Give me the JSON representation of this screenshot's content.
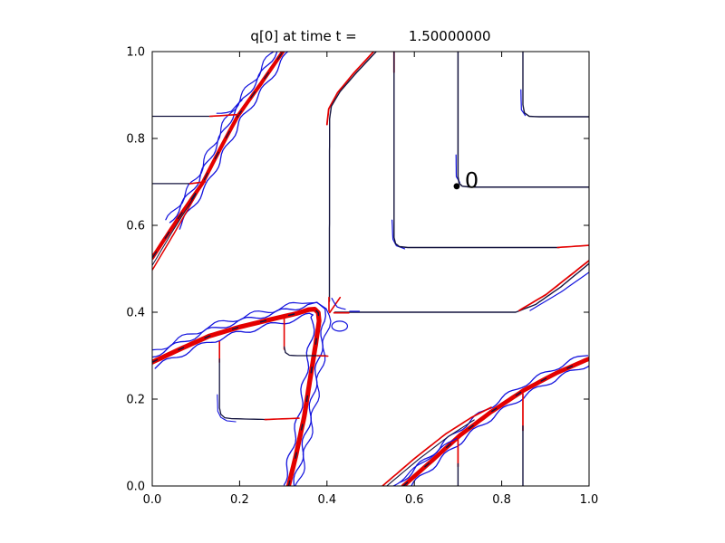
{
  "figure": {
    "title": "q[0] at time t =            1.50000000"
  },
  "chart_data": {
    "type": "contour",
    "title": "q[0] at time t =            1.50000000",
    "xlabel": "",
    "ylabel": "",
    "xlim": [
      0,
      1
    ],
    "ylim": [
      0,
      1
    ],
    "grid": false,
    "legend": null,
    "xticks": {
      "values": [
        0,
        0.2,
        0.4,
        0.6,
        0.8,
        1.0
      ],
      "labels": [
        "0.0",
        "0.2",
        "0.4",
        "0.6",
        "0.8",
        "1.0"
      ]
    },
    "yticks": {
      "values": [
        0,
        0.2,
        0.4,
        0.6,
        0.8,
        1.0
      ],
      "labels": [
        "0.0",
        "0.2",
        "0.4",
        "0.6",
        "0.8",
        "1.0"
      ]
    },
    "colors": {
      "red": "#e40000",
      "blue": "#1212dd",
      "navy": "#14143e",
      "black": "#000000"
    },
    "annotation": {
      "text": "0",
      "dot": {
        "x": 0.697,
        "y": 0.69
      },
      "label": {
        "x": 0.7155,
        "y": 0.686
      },
      "font_px": 24
    },
    "paths": {
      "U": [
        [
          0,
          0.525
        ],
        [
          0.06,
          0.617
        ],
        [
          0.115,
          0.697
        ],
        [
          0.156,
          0.777
        ],
        [
          0.196,
          0.852
        ],
        [
          0.25,
          0.928
        ],
        [
          0.306,
          1.01
        ]
      ],
      "UB": [
        [
          0.05,
          0.6
        ],
        [
          0.115,
          0.697
        ],
        [
          0.156,
          0.777
        ],
        [
          0.196,
          0.852
        ],
        [
          0.25,
          0.928
        ],
        [
          0.305,
          1.01
        ]
      ],
      "L": [
        [
          0,
          0.285
        ],
        [
          0.07,
          0.318
        ],
        [
          0.13,
          0.345
        ],
        [
          0.2,
          0.366
        ],
        [
          0.27,
          0.383
        ],
        [
          0.33,
          0.397
        ],
        [
          0.358,
          0.406
        ],
        [
          0.372,
          0.407
        ],
        [
          0.38,
          0.399
        ],
        [
          0.382,
          0.38
        ],
        [
          0.374,
          0.325
        ],
        [
          0.362,
          0.25
        ],
        [
          0.348,
          0.16
        ],
        [
          0.328,
          0.066
        ],
        [
          0.312,
          0
        ]
      ],
      "R": [
        [
          0.575,
          0
        ],
        [
          0.64,
          0.058
        ],
        [
          0.705,
          0.117
        ],
        [
          0.775,
          0.17
        ],
        [
          0.85,
          0.22
        ],
        [
          0.925,
          0.26
        ],
        [
          1.0,
          0.293
        ]
      ]
    },
    "features": [
      {
        "name": "upper-band-blue-outer",
        "ref": "UB",
        "c": "blue",
        "w": 1.2,
        "off": -9,
        "wig": 2.8,
        "ph": 4
      },
      {
        "name": "upper-band-blue-left",
        "ref": "UB",
        "c": "blue",
        "w": 1.3,
        "off": -5.5,
        "wig": 2.2
      },
      {
        "name": "upper-band-blue-right",
        "ref": "UB",
        "c": "blue",
        "w": 1.3,
        "off": 5.5,
        "wig": 2.2,
        "ph": 2
      },
      {
        "name": "upper-band-red",
        "ref": "U",
        "c": "red",
        "w": 4.2
      },
      {
        "name": "upper-band-core",
        "ref": "U",
        "c": "navy",
        "w": 1.3,
        "dash": "8 18"
      },
      {
        "name": "upper-thin-red",
        "pts": [
          [
            0,
            0.497
          ],
          [
            0.055,
            0.59
          ],
          [
            0.112,
            0.69
          ]
        ],
        "c": "red",
        "w": 1.5
      },
      {
        "name": "upper-thin-navy",
        "pts": [
          [
            0,
            0.508
          ],
          [
            0.05,
            0.592
          ],
          [
            0.1,
            0.672
          ]
        ],
        "c": "navy",
        "w": 1
      },
      {
        "name": "hline-085-navy",
        "pts": [
          [
            0,
            0.851
          ],
          [
            0.138,
            0.851
          ]
        ],
        "c": "navy",
        "w": 1.3
      },
      {
        "name": "hline-085-red",
        "pts": [
          [
            0.132,
            0.851
          ],
          [
            0.197,
            0.855
          ]
        ],
        "c": "red",
        "w": 1.6
      },
      {
        "name": "hline-085-blue",
        "pts": [
          [
            0.148,
            0.858
          ],
          [
            0.18,
            0.864
          ],
          [
            0.207,
            0.886
          ]
        ],
        "c": "blue",
        "w": 1.2,
        "wig": 1.3
      },
      {
        "name": "hline-070-navy",
        "pts": [
          [
            0,
            0.696
          ],
          [
            0.092,
            0.696
          ]
        ],
        "c": "navy",
        "w": 1.3
      },
      {
        "name": "hline-070-red",
        "pts": [
          [
            0.086,
            0.696
          ],
          [
            0.121,
            0.7
          ]
        ],
        "c": "red",
        "w": 1.6
      },
      {
        "name": "topmid-red",
        "pts": [
          [
            0.516,
            1.01
          ],
          [
            0.461,
            0.95
          ],
          [
            0.424,
            0.905
          ],
          [
            0.404,
            0.868
          ],
          [
            0.4,
            0.832
          ]
        ],
        "c": "red",
        "w": 1.8
      },
      {
        "name": "topmid-navy",
        "pts": [
          [
            0.522,
            1.01
          ],
          [
            0.468,
            0.952
          ],
          [
            0.43,
            0.908
          ],
          [
            0.41,
            0.874
          ],
          [
            0.406,
            0.845
          ],
          [
            0.4055,
            0.425
          ]
        ],
        "c": "navy",
        "w": 1.4
      },
      {
        "name": "v0553-red-tip",
        "pts": [
          [
            0.5535,
            1.01
          ],
          [
            0.5535,
            0.952
          ]
        ],
        "c": "red",
        "w": 1.8
      },
      {
        "name": "corner-0553-blue",
        "pts": [
          [
            0.549,
            0.612
          ],
          [
            0.551,
            0.568
          ],
          [
            0.559,
            0.553
          ],
          [
            0.578,
            0.546
          ]
        ],
        "c": "blue",
        "w": 1.2
      },
      {
        "name": "v0553-h055-navy",
        "pts": [
          [
            0.5535,
            1.01
          ],
          [
            0.5535,
            0.572
          ],
          [
            0.557,
            0.558
          ],
          [
            0.566,
            0.551
          ],
          [
            0.585,
            0.549
          ],
          [
            0.932,
            0.549
          ]
        ],
        "c": "navy",
        "w": 1.4
      },
      {
        "name": "h055-red",
        "pts": [
          [
            0.928,
            0.549
          ],
          [
            1.0,
            0.554
          ]
        ],
        "c": "red",
        "w": 1.6
      },
      {
        "name": "contour0-blue-corner",
        "pts": [
          [
            0.6955,
            0.762
          ],
          [
            0.696,
            0.712
          ],
          [
            0.704,
            0.699
          ]
        ],
        "c": "blue",
        "w": 1.2
      },
      {
        "name": "contour0-navy",
        "pts": [
          [
            0.7,
            1.01
          ],
          [
            0.7,
            0.712
          ],
          [
            0.7025,
            0.697
          ],
          [
            0.71,
            0.69
          ],
          [
            0.728,
            0.688
          ],
          [
            1.0,
            0.688
          ]
        ],
        "c": "navy",
        "w": 1.5
      },
      {
        "name": "v0848-blue-corner",
        "pts": [
          [
            0.844,
            0.912
          ],
          [
            0.845,
            0.866
          ],
          [
            0.854,
            0.853
          ]
        ],
        "c": "blue",
        "w": 1.2
      },
      {
        "name": "v0848-navy",
        "pts": [
          [
            0.8485,
            1.01
          ],
          [
            0.8485,
            0.878
          ],
          [
            0.852,
            0.859
          ],
          [
            0.863,
            0.851
          ],
          [
            0.886,
            0.85
          ],
          [
            1.0,
            0.85
          ]
        ],
        "c": "navy",
        "w": 1.4
      },
      {
        "name": "h040-navy",
        "pts": [
          [
            0.418,
            0.4
          ],
          [
            0.832,
            0.4
          ],
          [
            0.878,
            0.418
          ],
          [
            0.935,
            0.458
          ],
          [
            1.0,
            0.512
          ]
        ],
        "c": "navy",
        "w": 1.4
      },
      {
        "name": "h040-blue-dash",
        "pts": [
          [
            0.452,
            0.402
          ],
          [
            0.474,
            0.402
          ]
        ],
        "c": "blue",
        "w": 1.2
      },
      {
        "name": "h040-red-diag",
        "pts": [
          [
            0.84,
            0.404
          ],
          [
            0.902,
            0.441
          ],
          [
            1.0,
            0.519
          ]
        ],
        "c": "red",
        "w": 1.8
      },
      {
        "name": "h040-blue-diag",
        "pts": [
          [
            0.865,
            0.404
          ],
          [
            0.935,
            0.446
          ],
          [
            1.0,
            0.492
          ]
        ],
        "c": "blue",
        "w": 1.2
      },
      {
        "name": "junction-red-spur",
        "pts": [
          [
            0.4045,
            0.434
          ],
          [
            0.4045,
            0.402
          ]
        ],
        "c": "red",
        "w": 1.6
      },
      {
        "name": "junction-red-diag",
        "pts": [
          [
            0.406,
            0.399
          ],
          [
            0.43,
            0.434
          ]
        ],
        "c": "red",
        "w": 1.6
      },
      {
        "name": "junction-red-h",
        "pts": [
          [
            0.416,
            0.3985
          ],
          [
            0.45,
            0.3985
          ]
        ],
        "c": "red",
        "w": 1.6
      },
      {
        "name": "junction-blue-loop",
        "ellipse": true,
        "cx": 0.429,
        "cy": 0.368,
        "rx": 0.018,
        "ry": 0.0115,
        "c": "blue",
        "w": 1.2
      },
      {
        "name": "junction-blue-curve",
        "pts": [
          [
            0.411,
            0.432
          ],
          [
            0.425,
            0.414
          ],
          [
            0.442,
            0.407
          ]
        ],
        "c": "blue",
        "w": 1.2,
        "wig": 1.2
      },
      {
        "name": "lambda-blue-outer",
        "ref": "L",
        "c": "blue",
        "w": 1.2,
        "off": -10,
        "wig": 3,
        "ph": 4.5
      },
      {
        "name": "lambda-blue-left",
        "ref": "L",
        "c": "blue",
        "w": 1.3,
        "off": -6,
        "wig": 2.6
      },
      {
        "name": "lambda-blue-right",
        "ref": "L",
        "c": "blue",
        "w": 1.3,
        "off": 6,
        "wig": 2.6,
        "ph": 2.5
      },
      {
        "name": "lambda-red",
        "ref": "L",
        "c": "red",
        "w": 5.2
      },
      {
        "name": "lambda-core",
        "ref": "L",
        "c": "navy",
        "w": 1.5,
        "dash": "6 26"
      },
      {
        "name": "box-red-top",
        "pts": [
          [
            0.154,
            0.332
          ],
          [
            0.154,
            0.285
          ]
        ],
        "c": "red",
        "w": 1.6
      },
      {
        "name": "box-blue-corner",
        "pts": [
          [
            0.149,
            0.21
          ],
          [
            0.15,
            0.172
          ],
          [
            0.157,
            0.158
          ],
          [
            0.171,
            0.15
          ],
          [
            0.191,
            0.148
          ]
        ],
        "c": "blue",
        "w": 1.1
      },
      {
        "name": "box-navy",
        "pts": [
          [
            0.154,
            0.292
          ],
          [
            0.154,
            0.18
          ],
          [
            0.157,
            0.165
          ],
          [
            0.166,
            0.157
          ],
          [
            0.182,
            0.155
          ],
          [
            0.262,
            0.153
          ]
        ],
        "c": "navy",
        "w": 1.3
      },
      {
        "name": "box-red-h",
        "pts": [
          [
            0.258,
            0.153
          ],
          [
            0.336,
            0.156
          ]
        ],
        "c": "red",
        "w": 1.6
      },
      {
        "name": "innerbox-red-v",
        "pts": [
          [
            0.302,
            0.39
          ],
          [
            0.302,
            0.315
          ]
        ],
        "c": "red",
        "w": 1.6
      },
      {
        "name": "innerbox-navy",
        "pts": [
          [
            0.302,
            0.32
          ],
          [
            0.305,
            0.307
          ],
          [
            0.314,
            0.301
          ],
          [
            0.332,
            0.3
          ],
          [
            0.398,
            0.3
          ]
        ],
        "c": "navy",
        "w": 1.3
      },
      {
        "name": "innerbox-red-end",
        "pts": [
          [
            0.378,
            0.3
          ],
          [
            0.402,
            0.299
          ]
        ],
        "c": "red",
        "w": 1.5
      },
      {
        "name": "br-band-blue-left",
        "ref": "R",
        "c": "blue",
        "w": 1.3,
        "off": -5.5,
        "wig": 2.4
      },
      {
        "name": "br-band-blue-right",
        "ref": "R",
        "c": "blue",
        "w": 1.3,
        "off": 5.5,
        "wig": 2.4,
        "ph": 2
      },
      {
        "name": "br-band-red",
        "ref": "R",
        "c": "red",
        "w": 4.8
      },
      {
        "name": "br-band-core",
        "ref": "R",
        "c": "navy",
        "w": 1.5,
        "dash": "6 26"
      },
      {
        "name": "br-thin-red",
        "pts": [
          [
            0.527,
            0
          ],
          [
            0.6,
            0.063
          ],
          [
            0.672,
            0.12
          ],
          [
            0.731,
            0.158
          ],
          [
            0.776,
            0.181
          ]
        ],
        "c": "red",
        "w": 1.7
      },
      {
        "name": "br-thin-navy",
        "pts": [
          [
            0.537,
            0
          ],
          [
            0.608,
            0.06
          ],
          [
            0.678,
            0.114
          ],
          [
            0.737,
            0.152
          ]
        ],
        "c": "navy",
        "w": 1.1
      },
      {
        "name": "br-thin-blue",
        "pts": [
          [
            0.552,
            0
          ],
          [
            0.625,
            0.059
          ],
          [
            0.696,
            0.111
          ]
        ],
        "c": "blue",
        "w": 1.2,
        "wig": 1.4
      },
      {
        "name": "v07-bottom-red",
        "pts": [
          [
            0.7,
            0.112
          ],
          [
            0.7,
            0.045
          ]
        ],
        "c": "red",
        "w": 1.7
      },
      {
        "name": "v07-bottom-navy",
        "pts": [
          [
            0.7,
            0.051
          ],
          [
            0.7,
            0
          ]
        ],
        "c": "navy",
        "w": 1.4
      },
      {
        "name": "v0848-bottom-red",
        "pts": [
          [
            0.8485,
            0.212
          ],
          [
            0.8485,
            0.128
          ]
        ],
        "c": "red",
        "w": 1.7
      },
      {
        "name": "v0848-bottom-navy",
        "pts": [
          [
            0.8485,
            0.138
          ],
          [
            0.8485,
            0
          ]
        ],
        "c": "navy",
        "w": 1.4
      }
    ]
  }
}
